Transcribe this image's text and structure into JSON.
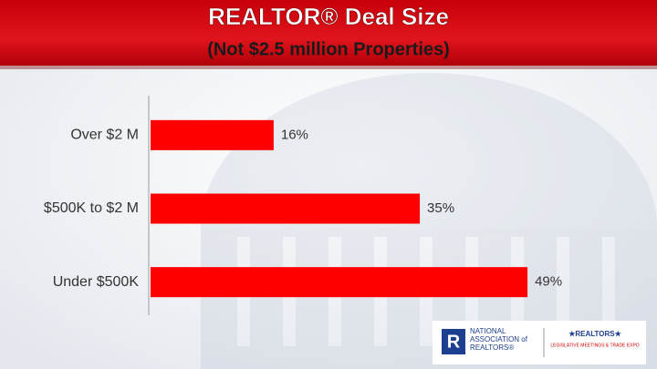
{
  "chart_data": {
    "type": "hbar",
    "title": "REALTOR® Deal Size",
    "subtitle": "(Not $2.5 million Properties)",
    "categories": [
      "Over $2 M",
      "$500K to $2 M",
      "Under $500K"
    ],
    "values": [
      16,
      35,
      49
    ],
    "value_labels": [
      "16%",
      "35%",
      "49%"
    ],
    "color": "#ff0000"
  },
  "logo_text": [
    "NATIONAL",
    "ASSOCIATION of",
    "REALTORS®",
    "★REALTORS★",
    "LEGISLATIVE MEETINGS & TRADE EXPO"
  ]
}
